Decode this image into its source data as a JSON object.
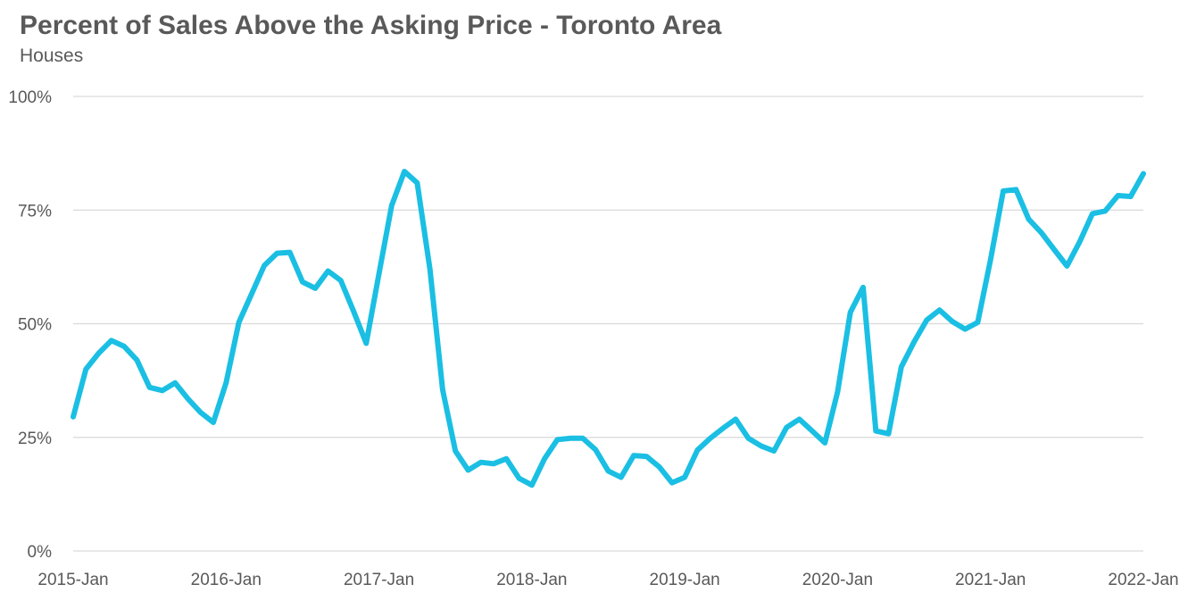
{
  "chart_data": {
    "type": "line",
    "title": "Percent of Sales Above the Asking Price - Toronto Area",
    "subtitle": "Houses",
    "xlabel": "",
    "ylabel": "",
    "ylim": [
      0,
      100
    ],
    "y_ticks": [
      0,
      25,
      50,
      75,
      100
    ],
    "y_tick_labels": [
      "0%",
      "25%",
      "50%",
      "75%",
      "100%"
    ],
    "x_tick_labels": [
      "2015-Jan",
      "2016-Jan",
      "2017-Jan",
      "2018-Jan",
      "2019-Jan",
      "2020-Jan",
      "2021-Jan",
      "2022-Jan"
    ],
    "grid": true,
    "legend": "none",
    "line_color": "#1abfe3",
    "series": [
      {
        "x_start": "2015-Jan",
        "x_end": "2022-Jan",
        "frequency": "monthly",
        "values": [
          29.5,
          40,
          43.5,
          46.3,
          45,
          42,
          36,
          35.3,
          37,
          33.5,
          30.5,
          28.3,
          37,
          50.3,
          56.5,
          62.8,
          65.5,
          65.7,
          59.2,
          57.8,
          61.6,
          59.5,
          52.8,
          45.7,
          61,
          76,
          83.5,
          81,
          62,
          35.5,
          22,
          17.8,
          19.5,
          19.2,
          20.3,
          16,
          14.5,
          20.3,
          24.5,
          24.8,
          24.8,
          22.3,
          17.6,
          16.2,
          21,
          20.8,
          18.5,
          15,
          16.2,
          22.2,
          24.8,
          27,
          29,
          24.8,
          23.1,
          22,
          27.2,
          29,
          26.4,
          23.8,
          35,
          52.5,
          58,
          26.4,
          25.8,
          40.5,
          46,
          50.8,
          53,
          50.5,
          48.8,
          50.3,
          64,
          79.2,
          79.5,
          73,
          70,
          66.3,
          62.7,
          68,
          74.2,
          74.8,
          78.2,
          78,
          83
        ]
      }
    ]
  }
}
